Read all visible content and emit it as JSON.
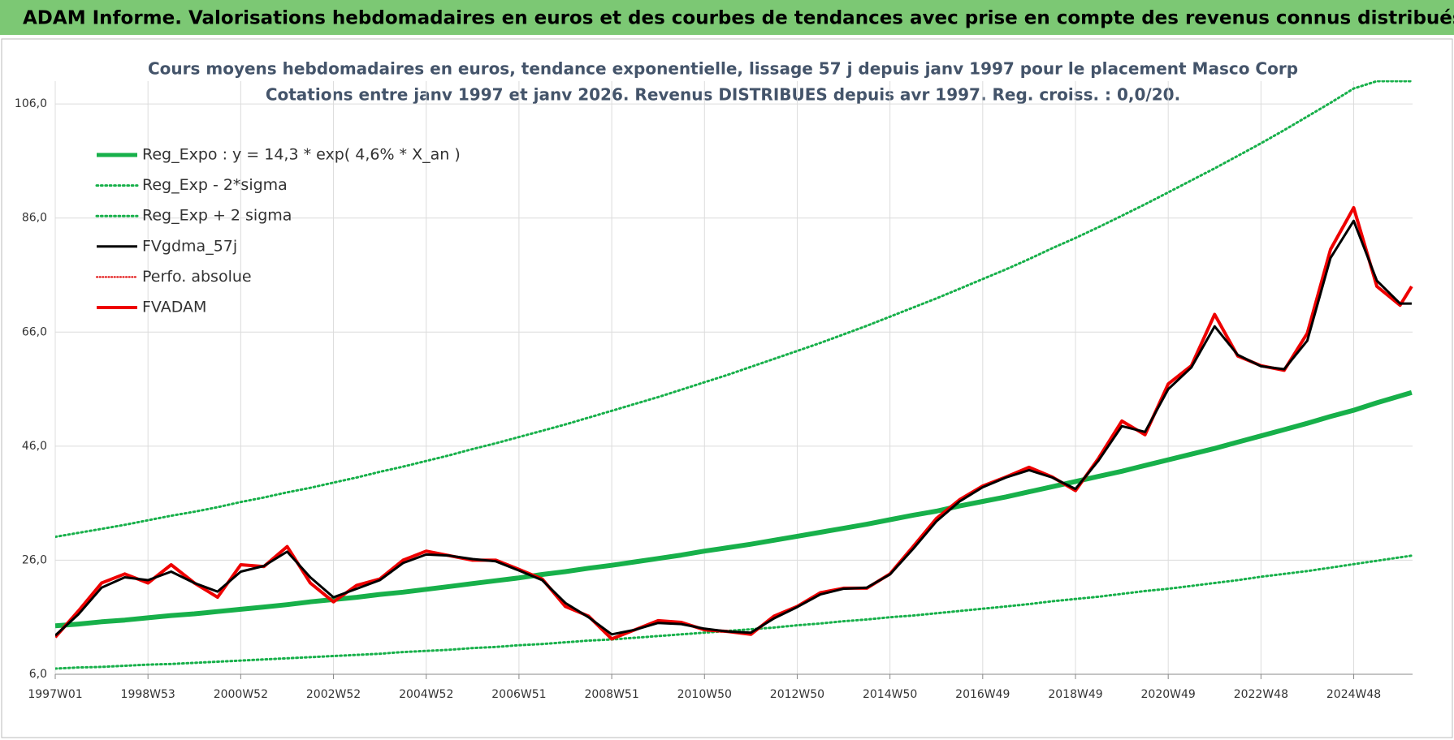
{
  "header": {
    "title": "ADAM Informe. Valorisations hebdomadaires en euros et des courbes de tendances avec prise en compte des revenus connus distribués"
  },
  "chart_data": {
    "type": "line",
    "title": "Cours moyens hebdomadaires en euros, tendance exponentielle, lissage 57 j depuis janv 1997 pour le placement Masco Corp",
    "subtitle": "Cotations entre janv 1997 et janv 2026. Revenus DISTRIBUES depuis avr 1997. Reg. croiss. : 0,0/20.",
    "x": [
      0,
      26,
      52,
      78,
      104,
      130,
      156,
      182,
      208,
      234,
      260,
      286,
      312,
      338,
      364,
      390,
      416,
      442,
      468,
      494,
      520,
      546,
      572,
      598,
      624,
      650,
      676,
      702,
      728,
      754,
      780,
      806,
      832,
      858,
      884,
      910,
      936,
      962,
      988,
      1014,
      1040,
      1066,
      1092,
      1118,
      1144,
      1170,
      1196,
      1222,
      1248,
      1274,
      1300,
      1326,
      1352,
      1378,
      1404,
      1430,
      1456,
      1482,
      1508,
      1521
    ],
    "xlim": [
      0,
      1522
    ],
    "xticks": [
      {
        "value": 0,
        "label": "1997W01"
      },
      {
        "value": 104,
        "label": "1998W53"
      },
      {
        "value": 208,
        "label": "2000W52"
      },
      {
        "value": 312,
        "label": "2002W52"
      },
      {
        "value": 416,
        "label": "2004W52"
      },
      {
        "value": 520,
        "label": "2006W51"
      },
      {
        "value": 624,
        "label": "2008W51"
      },
      {
        "value": 728,
        "label": "2010W50"
      },
      {
        "value": 832,
        "label": "2012W50"
      },
      {
        "value": 936,
        "label": "2014W50"
      },
      {
        "value": 1040,
        "label": "2016W49"
      },
      {
        "value": 1144,
        "label": "2018W49"
      },
      {
        "value": 1248,
        "label": "2020W49"
      },
      {
        "value": 1352,
        "label": "2022W48"
      },
      {
        "value": 1456,
        "label": "2024W48"
      }
    ],
    "ylim": [
      6,
      110
    ],
    "yticks": [
      {
        "value": 6,
        "label": "6,0"
      },
      {
        "value": 26,
        "label": "26,0"
      },
      {
        "value": 46,
        "label": "46,0"
      },
      {
        "value": 66,
        "label": "66,0"
      },
      {
        "value": 86,
        "label": "86,0"
      },
      {
        "value": 106,
        "label": "106,0"
      }
    ],
    "grid": true,
    "legend": "upper left",
    "series": [
      {
        "name": "Reg_Expo : y = 14,3 * exp( 4,6% *  X_an )",
        "color": "#17b04a",
        "style": "solid",
        "width": 6,
        "values": [
          14.5,
          14.8,
          15.2,
          15.5,
          15.9,
          16.3,
          16.6,
          17.0,
          17.4,
          17.8,
          18.2,
          18.7,
          19.1,
          19.5,
          20.0,
          20.4,
          20.9,
          21.4,
          21.9,
          22.4,
          22.9,
          23.5,
          24.0,
          24.6,
          25.1,
          25.7,
          26.3,
          26.9,
          27.6,
          28.2,
          28.8,
          29.5,
          30.2,
          30.9,
          31.6,
          32.3,
          33.1,
          33.9,
          34.6,
          35.5,
          36.3,
          37.1,
          38.0,
          38.9,
          39.8,
          40.7,
          41.6,
          42.6,
          43.6,
          44.6,
          45.6,
          46.7,
          47.8,
          48.9,
          50.0,
          51.2,
          52.3,
          53.6,
          54.8,
          55.4
        ]
      },
      {
        "name": "Reg_Exp - 2*sigma",
        "color": "#17b04a",
        "style": "dotted",
        "width": 3,
        "values": [
          7.0,
          7.2,
          7.3,
          7.5,
          7.7,
          7.8,
          8.0,
          8.2,
          8.4,
          8.6,
          8.8,
          9.0,
          9.2,
          9.4,
          9.6,
          9.9,
          10.1,
          10.3,
          10.6,
          10.8,
          11.1,
          11.3,
          11.6,
          11.9,
          12.1,
          12.4,
          12.7,
          13.0,
          13.3,
          13.6,
          13.9,
          14.2,
          14.6,
          14.9,
          15.3,
          15.6,
          16.0,
          16.3,
          16.7,
          17.1,
          17.5,
          17.9,
          18.3,
          18.8,
          19.2,
          19.6,
          20.1,
          20.6,
          21.0,
          21.5,
          22.0,
          22.5,
          23.1,
          23.6,
          24.1,
          24.7,
          25.3,
          25.9,
          26.5,
          26.8
        ]
      },
      {
        "name": "Reg_Exp + 2 sigma",
        "color": "#17b04a",
        "style": "dotted",
        "width": 3,
        "values": [
          30.1,
          30.8,
          31.5,
          32.2,
          33.0,
          33.8,
          34.5,
          35.3,
          36.2,
          37.0,
          37.9,
          38.7,
          39.6,
          40.5,
          41.5,
          42.4,
          43.4,
          44.4,
          45.5,
          46.5,
          47.6,
          48.7,
          49.8,
          51.0,
          52.2,
          53.4,
          54.6,
          55.9,
          57.2,
          58.5,
          59.9,
          61.3,
          62.7,
          64.1,
          65.6,
          67.1,
          68.7,
          70.3,
          71.9,
          73.6,
          75.3,
          77.0,
          78.8,
          80.7,
          82.5,
          84.4,
          86.4,
          88.4,
          90.5,
          92.6,
          94.7,
          96.9,
          99.1,
          101.4,
          103.8,
          106.2,
          108.7,
          110,
          110,
          110
        ]
      },
      {
        "name": "FVgdma_57j",
        "color": "#000000",
        "style": "solid",
        "width": 3,
        "values": [
          12.8,
          16.5,
          21.2,
          23,
          22.5,
          24,
          22,
          20.5,
          24,
          25,
          27.5,
          23,
          19.5,
          21,
          22.5,
          25.5,
          27,
          26.8,
          26.2,
          25.8,
          24.2,
          22.5,
          18.5,
          16,
          13,
          13.8,
          15,
          14.8,
          14,
          13.5,
          13.3,
          15.8,
          17.8,
          20,
          21,
          21.2,
          23.5,
          28,
          32.8,
          36.3,
          38.8,
          40.5,
          41.8,
          40.5,
          38.5,
          43.5,
          49.5,
          48.5,
          56,
          59.8,
          67,
          62,
          60,
          59.5,
          64.5,
          79,
          85.5,
          75,
          71,
          71
        ]
      },
      {
        "name": "Perfo. absolue",
        "color": "#e00000",
        "style": "dotted",
        "width": 2,
        "values": [
          null,
          null,
          null,
          null,
          null,
          null,
          null,
          null,
          null,
          null,
          null,
          null,
          null,
          null,
          null,
          null,
          null,
          null,
          null,
          null,
          null,
          null,
          null,
          null,
          null,
          null,
          null,
          null,
          null,
          null,
          null,
          null,
          null,
          null,
          null,
          null,
          null,
          null,
          null,
          null,
          null,
          null,
          null,
          null,
          null,
          null,
          null,
          null,
          null,
          null,
          null,
          null,
          null,
          null,
          null,
          null,
          null,
          null,
          null,
          null
        ]
      },
      {
        "name": "FVADAM",
        "color": "#ee0000",
        "style": "solid",
        "width": 4,
        "values": [
          12.5,
          17.1,
          22,
          23.6,
          22,
          25.2,
          22,
          19.5,
          25.2,
          24.9,
          28.4,
          22,
          18.7,
          21.6,
          22.7,
          26,
          27.6,
          26.8,
          26,
          26,
          24.4,
          22.7,
          17.9,
          16.2,
          12.2,
          13.8,
          15.4,
          15.1,
          13.8,
          13.5,
          13,
          16.2,
          17.9,
          20.3,
          21.1,
          21.1,
          23.6,
          28.4,
          33.3,
          36.6,
          39,
          40.6,
          42.3,
          40.6,
          38.2,
          43.9,
          50.4,
          48,
          56.9,
          60.1,
          69.1,
          61.8,
          60.1,
          59.3,
          65.8,
          80.5,
          87.8,
          74,
          70.7,
          74
        ]
      }
    ]
  }
}
